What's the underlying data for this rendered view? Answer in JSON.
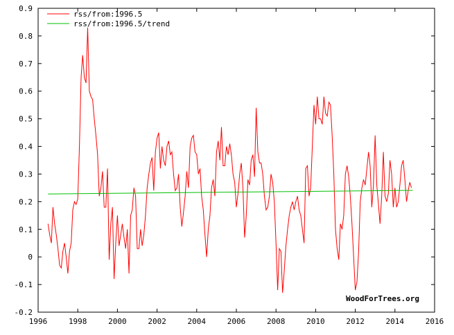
{
  "chart_data": {
    "type": "line",
    "title": "",
    "xlabel": "",
    "ylabel": "",
    "xlim": [
      1996,
      2016
    ],
    "ylim": [
      -0.2,
      0.9
    ],
    "grid": false,
    "legend_position": "top-left",
    "x_ticks": [
      "1996",
      "1998",
      "2000",
      "2002",
      "2004",
      "2006",
      "2008",
      "2010",
      "2012",
      "2014",
      "2016"
    ],
    "y_ticks": [
      "-0.2",
      "-0.1",
      "0",
      "0.1",
      "0.2",
      "0.3",
      "0.4",
      "0.5",
      "0.6",
      "0.7",
      "0.8",
      "0.9"
    ],
    "x_tick_values": [
      1996,
      1998,
      2000,
      2002,
      2004,
      2006,
      2008,
      2010,
      2012,
      2014,
      2016
    ],
    "y_tick_values": [
      -0.2,
      -0.1,
      0,
      0.1,
      0.2,
      0.3,
      0.4,
      0.5,
      0.6,
      0.7,
      0.8,
      0.9
    ],
    "watermark": "WoodForTrees.org",
    "series": [
      {
        "name": "rss/from:1996.5",
        "color": "#ff0000",
        "x_start": 1996.5,
        "x_step": 0.0833333,
        "values": [
          0.12,
          0.08,
          0.05,
          0.18,
          0.12,
          0.08,
          0.03,
          -0.03,
          -0.04,
          0.02,
          0.05,
          0.0,
          -0.06,
          0.02,
          0.05,
          0.17,
          0.2,
          0.19,
          0.21,
          0.4,
          0.65,
          0.73,
          0.65,
          0.63,
          0.83,
          0.6,
          0.58,
          0.57,
          0.5,
          0.44,
          0.37,
          0.22,
          0.25,
          0.31,
          0.18,
          0.18,
          0.32,
          -0.01,
          0.12,
          0.18,
          -0.08,
          0.05,
          0.15,
          0.04,
          0.08,
          0.12,
          0.07,
          0.03,
          0.1,
          -0.06,
          0.15,
          0.17,
          0.25,
          0.22,
          0.03,
          0.03,
          0.1,
          0.04,
          0.08,
          0.15,
          0.25,
          0.3,
          0.34,
          0.36,
          0.24,
          0.38,
          0.43,
          0.45,
          0.32,
          0.4,
          0.35,
          0.33,
          0.4,
          0.42,
          0.37,
          0.38,
          0.3,
          0.24,
          0.25,
          0.3,
          0.18,
          0.11,
          0.16,
          0.22,
          0.31,
          0.25,
          0.4,
          0.43,
          0.44,
          0.38,
          0.37,
          0.3,
          0.32,
          0.22,
          0.17,
          0.08,
          0.0,
          0.1,
          0.15,
          0.25,
          0.28,
          0.22,
          0.38,
          0.42,
          0.35,
          0.47,
          0.33,
          0.33,
          0.4,
          0.37,
          0.41,
          0.37,
          0.3,
          0.27,
          0.18,
          0.23,
          0.3,
          0.34,
          0.25,
          0.07,
          0.15,
          0.28,
          0.26,
          0.35,
          0.37,
          0.29,
          0.54,
          0.38,
          0.34,
          0.34,
          0.3,
          0.22,
          0.17,
          0.18,
          0.22,
          0.3,
          0.27,
          0.2,
          0.05,
          -0.12,
          0.03,
          0.02,
          -0.13,
          -0.05,
          0.04,
          0.1,
          0.15,
          0.18,
          0.2,
          0.17,
          0.2,
          0.22,
          0.17,
          0.15,
          0.1,
          0.05,
          0.32,
          0.33,
          0.22,
          0.25,
          0.4,
          0.55,
          0.48,
          0.58,
          0.5,
          0.5,
          0.48,
          0.58,
          0.52,
          0.51,
          0.56,
          0.55,
          0.44,
          0.3,
          0.1,
          0.03,
          -0.01,
          0.12,
          0.1,
          0.15,
          0.3,
          0.33,
          0.29,
          0.22,
          0.12,
          0.0,
          -0.12,
          -0.09,
          0.02,
          0.2,
          0.25,
          0.28,
          0.26,
          0.32,
          0.38,
          0.33,
          0.18,
          0.26,
          0.44,
          0.26,
          0.19,
          0.12,
          0.22,
          0.38,
          0.22,
          0.2,
          0.23,
          0.35,
          0.3,
          0.18,
          0.25,
          0.18,
          0.2,
          0.26,
          0.33,
          0.35,
          0.28,
          0.2,
          0.24,
          0.27,
          0.25
        ]
      },
      {
        "name": "rss/from:1996.5/trend",
        "color": "#00c000",
        "x": [
          1996.5,
          2014.9
        ],
        "values": [
          0.228,
          0.241
        ]
      }
    ]
  }
}
